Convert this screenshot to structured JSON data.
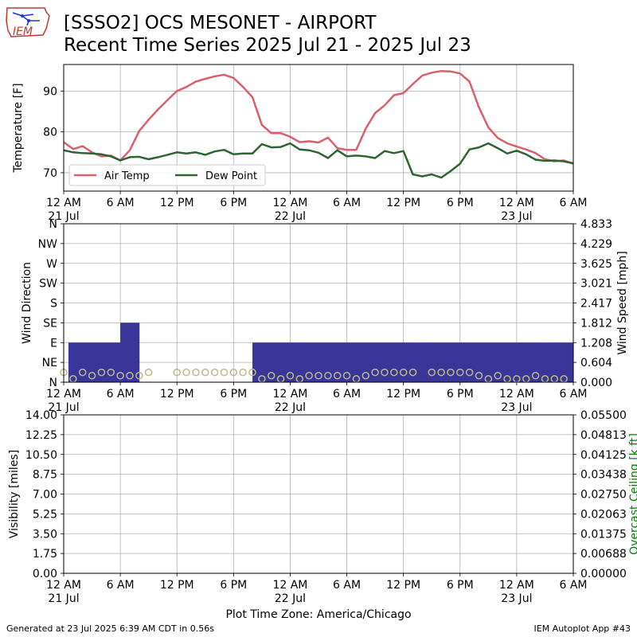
{
  "header": {
    "logo_text": "IEM",
    "title_line1": "[SSSO2] OCS MESONET - AIRPORT",
    "title_line2": "Recent Time Series 2025 Jul 21 - 2025 Jul 23"
  },
  "footer": {
    "generated": "Generated at 23 Jul 2025 6:39 AM CDT in 0.56s",
    "app": "IEM Autoplot App #43",
    "timezone_label": "Plot Time Zone: America/Chicago"
  },
  "colors": {
    "air_temp": "#d9606a",
    "dew_point": "#2e6431",
    "wind_bar": "#3a3598",
    "gust_marker": "#bdb885",
    "ceiling_axis": "#008000",
    "grid": "#b0b0b0"
  },
  "time_axis": {
    "tick_hours": [
      0,
      6,
      12,
      18,
      24,
      30,
      36,
      42,
      48,
      54
    ],
    "tick_labels": [
      "12 AM",
      "6 AM",
      "12 PM",
      "6 PM",
      "12 AM",
      "6 AM",
      "12 PM",
      "6 PM",
      "12 AM",
      "6 AM"
    ],
    "date_labels": [
      {
        "hour": 0,
        "label": "21 Jul"
      },
      {
        "hour": 24,
        "label": "22 Jul"
      },
      {
        "hour": 48,
        "label": "23 Jul"
      }
    ]
  },
  "chart_data": [
    {
      "type": "line",
      "panel": "temperature",
      "x_unit": "hours since 2025-07-21 00:00 CDT",
      "xlim": [
        0,
        54
      ],
      "ylim": [
        65.5,
        96.5
      ],
      "ylabel": "Temperature [F]",
      "yticks": [
        70,
        80,
        90
      ],
      "grid": true,
      "legend": "lower-left",
      "series": [
        {
          "name": "Air Temp",
          "x": [
            0,
            1,
            2,
            3,
            4,
            5,
            6,
            7,
            8,
            9,
            10,
            11,
            12,
            13,
            14,
            15,
            16,
            17,
            18,
            19,
            20,
            21,
            22,
            23,
            24,
            25,
            26,
            27,
            28,
            29,
            30,
            31,
            32,
            33,
            34,
            35,
            36,
            37,
            38,
            39,
            40,
            41,
            42,
            43,
            44,
            45,
            46,
            47,
            48,
            49,
            50,
            51,
            52,
            53,
            54
          ],
          "values": [
            77.5,
            75.8,
            76.5,
            75.0,
            74.0,
            74.2,
            73.0,
            75.5,
            80.2,
            83.0,
            85.5,
            87.8,
            90.0,
            91.0,
            92.3,
            93.0,
            93.6,
            94.0,
            93.2,
            91.0,
            88.5,
            81.7,
            79.7,
            79.7,
            78.8,
            77.5,
            77.7,
            77.4,
            78.6,
            76.0,
            75.6,
            75.6,
            80.8,
            84.6,
            86.5,
            89.0,
            89.5,
            91.7,
            93.8,
            94.5,
            94.9,
            94.8,
            94.3,
            92.3,
            86.0,
            81.1,
            78.5,
            77.2,
            76.4,
            75.7,
            74.8,
            73.3,
            72.8,
            73.0,
            72.2
          ]
        },
        {
          "name": "Dew Point",
          "x": [
            0,
            1,
            2,
            3,
            4,
            5,
            6,
            7,
            8,
            9,
            10,
            11,
            12,
            13,
            14,
            15,
            16,
            17,
            18,
            19,
            20,
            21,
            22,
            23,
            24,
            25,
            26,
            27,
            28,
            29,
            30,
            31,
            32,
            33,
            34,
            35,
            36,
            37,
            38,
            39,
            40,
            41,
            42,
            43,
            44,
            45,
            46,
            47,
            48,
            49,
            50,
            51,
            52,
            53,
            54
          ],
          "values": [
            75.5,
            75.0,
            74.8,
            74.7,
            74.5,
            74.0,
            73.0,
            73.8,
            73.9,
            73.3,
            73.8,
            74.4,
            75.0,
            74.7,
            75.0,
            74.4,
            75.2,
            75.6,
            74.5,
            74.7,
            74.7,
            77.0,
            76.2,
            76.3,
            77.2,
            75.7,
            75.5,
            74.9,
            73.6,
            75.5,
            74.0,
            74.2,
            74.0,
            73.6,
            75.3,
            74.8,
            75.3,
            69.6,
            69.1,
            69.6,
            68.8,
            70.4,
            72.2,
            75.7,
            76.2,
            77.2,
            76.0,
            74.7,
            75.4,
            74.5,
            73.2,
            72.9,
            73.0,
            72.8,
            72.3
          ]
        }
      ]
    },
    {
      "type": "bar",
      "panel": "wind",
      "x_unit": "hours since 2025-07-21 00:00 CDT",
      "xlim": [
        0,
        54
      ],
      "ylabel": "Wind Direction",
      "ylabel_right": "Wind Speed [mph]",
      "direction_ticks": [
        "N",
        "NE",
        "E",
        "SE",
        "S",
        "SW",
        "W",
        "NW",
        "N"
      ],
      "direction_ylim": [
        0,
        360
      ],
      "speed_ylim": [
        0,
        4.833
      ],
      "speed_ticks": [
        "0.000",
        "0.604",
        "1.208",
        "1.812",
        "2.417",
        "3.021",
        "3.625",
        "4.229",
        "4.833"
      ],
      "grid": true,
      "series": [
        {
          "name": "Wind Direction",
          "x": [
            0,
            0.5,
            1,
            1.5,
            2,
            2.5,
            3,
            3.5,
            4,
            4.5,
            5,
            5.5,
            6,
            6.5,
            7,
            7.5,
            8,
            8.5,
            9,
            9.5,
            10,
            10.5,
            11,
            11.5,
            12,
            12.5,
            13,
            13.5,
            14,
            14.5,
            15,
            15.5,
            16,
            16.5,
            17,
            17.5,
            18,
            18.5,
            19,
            19.5,
            20,
            20.5,
            21,
            21.5,
            22,
            22.5,
            23,
            23.5,
            24,
            24.5,
            25,
            25.5,
            26,
            26.5,
            27,
            27.5,
            28,
            28.5,
            29,
            29.5,
            30,
            30.5,
            31,
            31.5,
            32,
            32.5,
            33,
            33.5,
            34,
            34.5,
            35,
            35.5,
            36,
            36.5,
            37,
            37.5,
            38,
            38.5,
            39,
            39.5,
            40,
            40.5,
            41,
            41.5,
            42,
            42.5,
            43,
            43.5,
            44,
            44.5,
            45,
            45.5,
            46,
            46.5,
            47,
            47.5,
            48,
            48.5,
            49,
            49.5,
            50,
            50.5,
            51,
            51.5,
            52,
            52.5,
            53,
            53.5
          ],
          "values": [
            0,
            90,
            90,
            90,
            90,
            90,
            90,
            90,
            90,
            90,
            90,
            90,
            135,
            135,
            135,
            135,
            0,
            0,
            0,
            0,
            0,
            0,
            0,
            0,
            0,
            0,
            0,
            0,
            0,
            0,
            0,
            0,
            0,
            0,
            0,
            0,
            0,
            0,
            0,
            0,
            90,
            90,
            90,
            90,
            90,
            90,
            90,
            90,
            90,
            90,
            90,
            90,
            90,
            90,
            90,
            90,
            90,
            90,
            90,
            90,
            90,
            90,
            90,
            90,
            90,
            90,
            90,
            90,
            90,
            90,
            90,
            90,
            90,
            90,
            90,
            90,
            90,
            90,
            90,
            90,
            90,
            90,
            90,
            90,
            90,
            90,
            90,
            90,
            90,
            90,
            90,
            90,
            90,
            90,
            90,
            90,
            90,
            90,
            90,
            90,
            90,
            90,
            90,
            90,
            90,
            90,
            90,
            90
          ]
        },
        {
          "name": "Wind Speed",
          "x": [
            0,
            1,
            2,
            3,
            4,
            5,
            6,
            7,
            8,
            9,
            10,
            11,
            12,
            13,
            14,
            15,
            16,
            17,
            18,
            19,
            20,
            21,
            22,
            23,
            24,
            25,
            26,
            27,
            28,
            29,
            30,
            31,
            32,
            33,
            34,
            35,
            36,
            37,
            38,
            39,
            40,
            41,
            42,
            43,
            44,
            45,
            46,
            47,
            48,
            49,
            50,
            51,
            52,
            53
          ],
          "values": [
            0.3,
            0.1,
            0.3,
            0.2,
            0.3,
            0.3,
            0.2,
            0.2,
            0.2,
            0.3,
            null,
            null,
            0.3,
            0.3,
            0.3,
            0.3,
            0.3,
            0.3,
            0.3,
            0.3,
            0.3,
            0.1,
            0.2,
            0.1,
            0.2,
            0.1,
            0.2,
            0.2,
            0.2,
            0.2,
            0.2,
            0.1,
            0.2,
            0.3,
            0.3,
            0.3,
            0.3,
            0.3,
            null,
            0.3,
            0.3,
            0.3,
            0.3,
            0.3,
            0.2,
            0.1,
            0.2,
            0.1,
            0.1,
            0.1,
            0.2,
            0.1,
            0.1,
            0.1
          ]
        }
      ]
    },
    {
      "type": "line",
      "panel": "visibility",
      "x_unit": "hours since 2025-07-21 00:00 CDT",
      "xlim": [
        0,
        54
      ],
      "ylabel": "Visibility [miles]",
      "ylabel_right": "Overcast Ceiling [k ft]",
      "ylim": [
        0,
        14
      ],
      "yticks": [
        "0.00",
        "1.75",
        "3.50",
        "5.25",
        "7.00",
        "8.75",
        "10.50",
        "12.25",
        "14.00"
      ],
      "ylim_right": [
        0,
        0.055
      ],
      "yticks_right": [
        "0.00000",
        "0.00688",
        "0.01375",
        "0.02063",
        "0.02750",
        "0.03438",
        "0.04125",
        "0.04813",
        "0.05500"
      ],
      "grid": true,
      "series": []
    }
  ]
}
